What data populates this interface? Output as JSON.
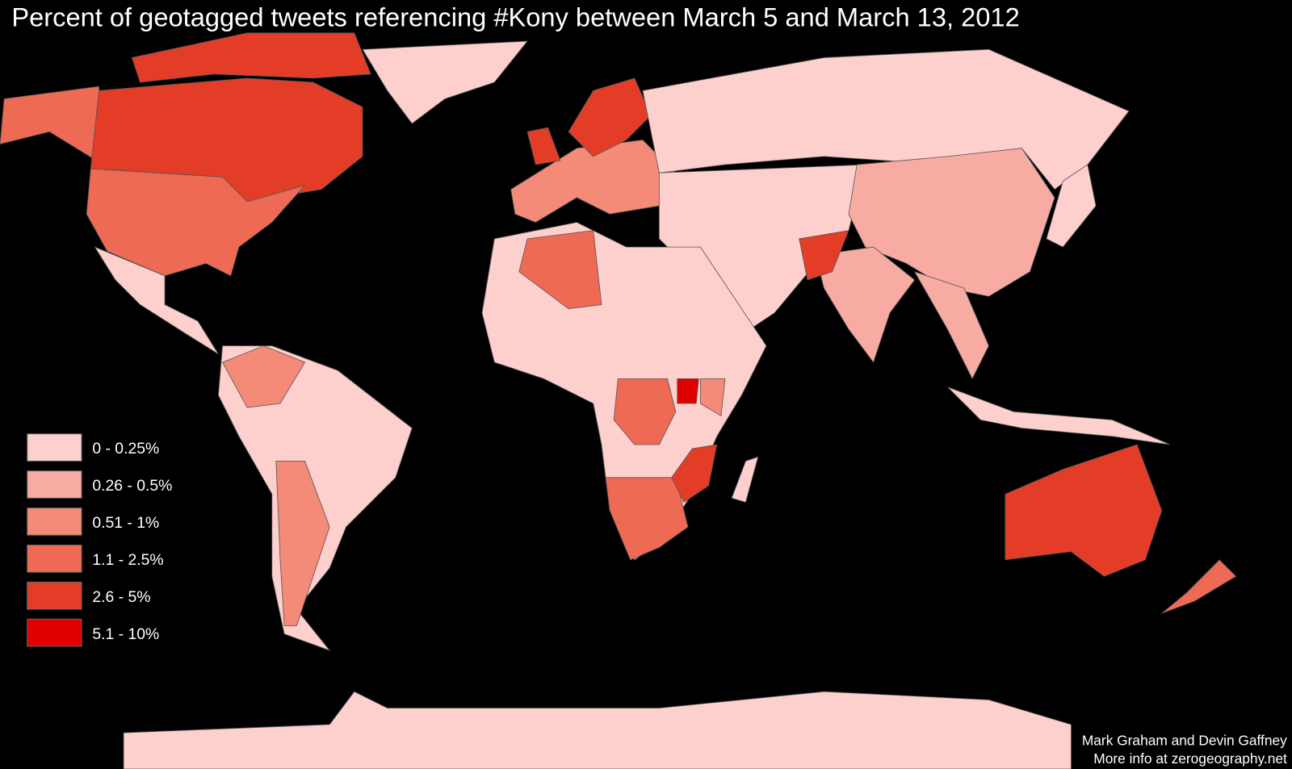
{
  "title": "Percent of geotagged tweets referencing #Kony between March 5 and March 13, 2012",
  "legend": [
    {
      "label": "0 - 0.25%",
      "color": "#fdd0cd"
    },
    {
      "label": "0.26 - 0.5%",
      "color": "#f8aba2"
    },
    {
      "label": "0.51 - 1%",
      "color": "#f48a78"
    },
    {
      "label": "1.1 - 2.5%",
      "color": "#ee6a55"
    },
    {
      "label": "2.6 - 5%",
      "color": "#e33d28"
    },
    {
      "label": "5.1 - 10%",
      "color": "#e00000"
    }
  ],
  "credits": [
    "Mark Graham and Devin Gaffney",
    "More info at zerogeography.net"
  ]
}
